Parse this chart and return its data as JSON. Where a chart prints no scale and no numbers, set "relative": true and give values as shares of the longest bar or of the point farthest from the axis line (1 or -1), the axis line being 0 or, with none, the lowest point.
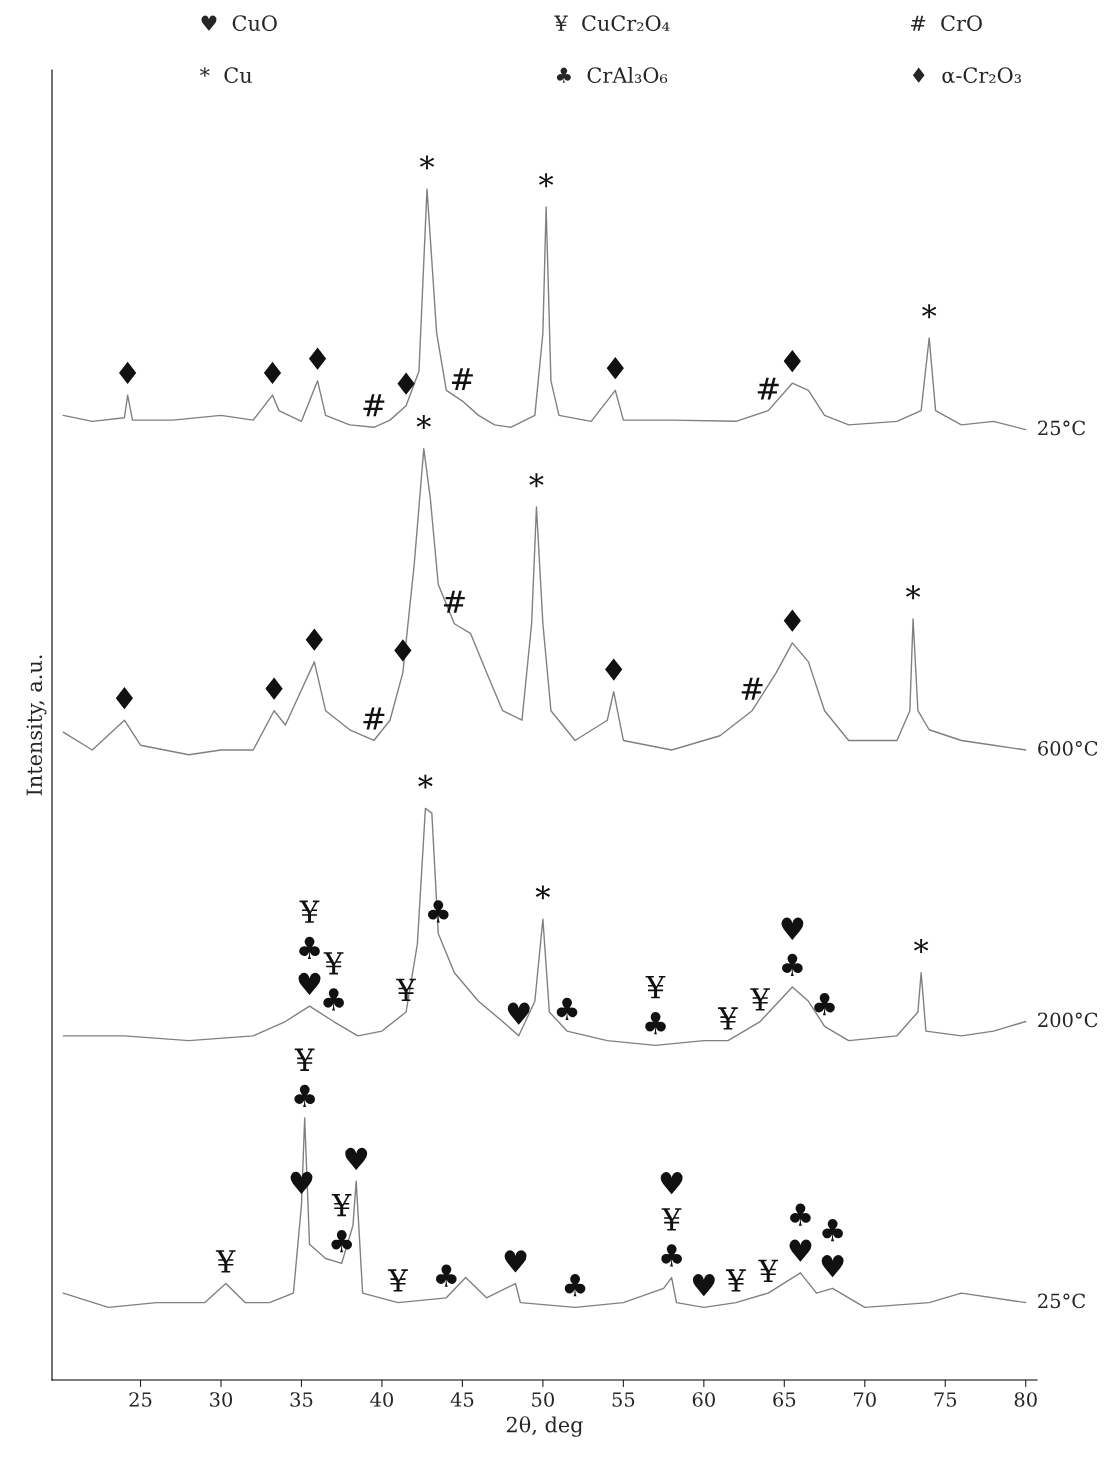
{
  "chart_data": {
    "type": "line",
    "relative": true,
    "xlabel": "2θ, deg",
    "ylabel": "Intensity, a.u.",
    "xlim": [
      19.5,
      80.7
    ],
    "xticks": [
      25,
      30,
      35,
      40,
      45,
      50,
      55,
      60,
      65,
      70,
      75,
      80
    ],
    "grid": false,
    "legend": false,
    "marker": "none",
    "line_style": "solid",
    "series": [
      {
        "name": "25°C",
        "color": "#808080",
        "x": [
          20.2,
          22,
          24,
          24.2,
          24.5,
          27,
          30,
          32,
          33.2,
          33.6,
          35,
          36,
          36.5,
          38,
          39.5,
          40.5,
          41.5,
          42.3,
          42.8,
          43.4,
          44,
          45,
          46,
          47,
          48,
          49.5,
          50,
          50.2,
          50.5,
          51,
          53,
          54.5,
          55,
          58,
          62,
          64,
          65.5,
          66.5,
          67.5,
          69,
          72,
          73.5,
          74,
          74.4,
          76,
          78,
          80
        ],
        "values": [
          0.81,
          0.805,
          0.808,
          0.827,
          0.806,
          0.806,
          0.81,
          0.806,
          0.827,
          0.814,
          0.805,
          0.839,
          0.81,
          0.802,
          0.8,
          0.806,
          0.818,
          0.847,
          1.0,
          0.879,
          0.831,
          0.822,
          0.81,
          0.802,
          0.8,
          0.81,
          0.879,
          0.985,
          0.839,
          0.81,
          0.805,
          0.831,
          0.806,
          0.806,
          0.805,
          0.814,
          0.837,
          0.831,
          0.81,
          0.802,
          0.805,
          0.814,
          0.875,
          0.814,
          0.802,
          0.805,
          0.798
        ]
      },
      {
        "name": "600°C",
        "color": "#808080",
        "x": [
          20.2,
          22,
          24,
          25,
          28,
          30,
          32,
          33.3,
          34,
          35.8,
          36.5,
          38,
          39.5,
          40.5,
          41.3,
          42,
          42.6,
          43,
          43.5,
          44.5,
          45.5,
          46.5,
          47.5,
          48.7,
          49.3,
          49.6,
          50,
          50.5,
          52,
          54,
          54.4,
          55,
          58,
          61,
          63,
          64.5,
          65.5,
          66.5,
          67.5,
          69,
          72,
          72.8,
          73,
          73.3,
          74,
          76,
          78,
          80
        ],
        "values": [
          0.544,
          0.529,
          0.554,
          0.533,
          0.525,
          0.529,
          0.529,
          0.562,
          0.55,
          0.603,
          0.562,
          0.546,
          0.537,
          0.554,
          0.594,
          0.684,
          0.782,
          0.741,
          0.668,
          0.635,
          0.627,
          0.594,
          0.562,
          0.554,
          0.635,
          0.733,
          0.635,
          0.562,
          0.537,
          0.554,
          0.578,
          0.537,
          0.529,
          0.541,
          0.562,
          0.594,
          0.619,
          0.603,
          0.562,
          0.537,
          0.537,
          0.562,
          0.639,
          0.562,
          0.546,
          0.537,
          0.533,
          0.529
        ]
      },
      {
        "name": "200°C",
        "color": "#808080",
        "x": [
          20.2,
          24,
          28,
          32,
          34,
          35.5,
          37,
          38.5,
          40,
          41.5,
          42.2,
          42.7,
          43.1,
          43.5,
          44.5,
          46,
          47.5,
          48.5,
          49.5,
          50,
          50.4,
          51.5,
          54,
          57,
          60,
          61.5,
          63.5,
          65.5,
          66.5,
          67.5,
          69,
          72,
          73.3,
          73.5,
          73.8,
          76,
          78,
          80
        ],
        "values": [
          0.289,
          0.289,
          0.285,
          0.289,
          0.301,
          0.314,
          0.301,
          0.289,
          0.293,
          0.309,
          0.366,
          0.48,
          0.476,
          0.375,
          0.342,
          0.318,
          0.301,
          0.289,
          0.318,
          0.387,
          0.309,
          0.293,
          0.285,
          0.281,
          0.285,
          0.285,
          0.301,
          0.33,
          0.318,
          0.297,
          0.285,
          0.289,
          0.309,
          0.342,
          0.293,
          0.289,
          0.293,
          0.301
        ]
      },
      {
        "name": "25°C",
        "color": "#808080",
        "x": [
          20.2,
          23,
          26,
          29,
          30.3,
          31.5,
          33,
          34.5,
          35,
          35.2,
          35.5,
          36.5,
          37.5,
          38.2,
          38.4,
          38.8,
          41,
          44,
          45.2,
          46.5,
          48.3,
          48.6,
          52,
          55,
          57.5,
          58,
          58.3,
          60,
          62,
          64,
          66,
          67,
          68,
          70,
          74,
          76,
          80
        ],
        "values": [
          0.073,
          0.061,
          0.065,
          0.065,
          0.081,
          0.065,
          0.065,
          0.073,
          0.147,
          0.22,
          0.114,
          0.102,
          0.098,
          0.13,
          0.167,
          0.073,
          0.065,
          0.069,
          0.086,
          0.069,
          0.081,
          0.065,
          0.061,
          0.065,
          0.077,
          0.086,
          0.065,
          0.061,
          0.065,
          0.073,
          0.09,
          0.073,
          0.077,
          0.061,
          0.065,
          0.073,
          0.065
        ]
      }
    ],
    "annotations": [
      "♥  CuO",
      "¥  CuCr₂O₄",
      "#  CrO",
      "*  Cu",
      "♣  CrAl₃O₆",
      "♦  α-Cr₂O₃",
      {
        "text": "♦",
        "x": 24.2,
        "y": 0.827
      },
      {
        "text": "♦",
        "x": 33.2,
        "y": 0.827
      },
      {
        "text": "♦",
        "x": 36,
        "y": 0.839
      },
      {
        "text": "#",
        "x": 39.5,
        "y": 0.8
      },
      {
        "text": "♦",
        "x": 41.5,
        "y": 0.818
      },
      {
        "text": "*",
        "x": 42.8,
        "y": 1.0
      },
      {
        "text": "#",
        "x": 45,
        "y": 0.822
      },
      {
        "text": "*",
        "x": 50.2,
        "y": 0.985
      },
      {
        "text": "♦",
        "x": 54.5,
        "y": 0.831
      },
      {
        "text": "#",
        "x": 64,
        "y": 0.814
      },
      {
        "text": "♦",
        "x": 65.5,
        "y": 0.837
      },
      {
        "text": "*",
        "x": 74,
        "y": 0.875
      },
      {
        "text": "♦",
        "x": 24,
        "y": 0.554
      },
      {
        "text": "♦",
        "x": 33.3,
        "y": 0.562
      },
      {
        "text": "♦",
        "x": 35.8,
        "y": 0.603
      },
      {
        "text": "#",
        "x": 39.5,
        "y": 0.537
      },
      {
        "text": "♦",
        "x": 41.3,
        "y": 0.594
      },
      {
        "text": "*",
        "x": 42.6,
        "y": 0.782
      },
      {
        "text": "#",
        "x": 44.5,
        "y": 0.635
      },
      {
        "text": "*",
        "x": 49.6,
        "y": 0.733
      },
      {
        "text": "♦",
        "x": 54.4,
        "y": 0.578
      },
      {
        "text": "#",
        "x": 63,
        "y": 0.562
      },
      {
        "text": "♦",
        "x": 65.5,
        "y": 0.619
      },
      {
        "text": "*",
        "x": 73,
        "y": 0.639
      },
      {
        "text": "♥",
        "x": 35.5,
        "y": 0.314
      },
      {
        "text": "♣",
        "x": 35.5,
        "y": 0.314
      },
      {
        "text": "¥",
        "x": 35.5,
        "y": 0.314
      },
      {
        "text": "♣",
        "x": 37,
        "y": 0.301
      },
      {
        "text": "¥",
        "x": 37,
        "y": 0.301
      },
      {
        "text": "¥",
        "x": 41.5,
        "y": 0.309
      },
      {
        "text": "*",
        "x": 42.7,
        "y": 0.48
      },
      {
        "text": "♣",
        "x": 43.5,
        "y": 0.375
      },
      {
        "text": "♥",
        "x": 48.5,
        "y": 0.289
      },
      {
        "text": "*",
        "x": 50,
        "y": 0.387
      },
      {
        "text": "♣",
        "x": 51.5,
        "y": 0.293
      },
      {
        "text": "♣",
        "x": 57,
        "y": 0.281
      },
      {
        "text": "¥",
        "x": 57,
        "y": 0.281
      },
      {
        "text": "¥",
        "x": 61.5,
        "y": 0.285
      },
      {
        "text": "¥",
        "x": 63.5,
        "y": 0.301
      },
      {
        "text": "♣",
        "x": 65.5,
        "y": 0.33
      },
      {
        "text": "♥",
        "x": 65.5,
        "y": 0.33
      },
      {
        "text": "♣",
        "x": 67.5,
        "y": 0.297
      },
      {
        "text": "*",
        "x": 73.5,
        "y": 0.342
      },
      {
        "text": "♥",
        "x": 35,
        "y": 0.147
      },
      {
        "text": "♣",
        "x": 35.2,
        "y": 0.22
      },
      {
        "text": "¥",
        "x": 35.2,
        "y": 0.22
      },
      {
        "text": "♣",
        "x": 37.5,
        "y": 0.098
      },
      {
        "text": "¥",
        "x": 37.5,
        "y": 0.098
      },
      {
        "text": "♥",
        "x": 38.4,
        "y": 0.167
      },
      {
        "text": "¥",
        "x": 30.3,
        "y": 0.081
      },
      {
        "text": "¥",
        "x": 41,
        "y": 0.065
      },
      {
        "text": "♣",
        "x": 44,
        "y": 0.069
      },
      {
        "text": "♥",
        "x": 48.3,
        "y": 0.081
      },
      {
        "text": "♣",
        "x": 52,
        "y": 0.061
      },
      {
        "text": "♣",
        "x": 58,
        "y": 0.086
      },
      {
        "text": "¥",
        "x": 58,
        "y": 0.086
      },
      {
        "text": "♥",
        "x": 58,
        "y": 0.086
      },
      {
        "text": "♥",
        "x": 60,
        "y": 0.061
      },
      {
        "text": "¥",
        "x": 62,
        "y": 0.065
      },
      {
        "text": "¥",
        "x": 64,
        "y": 0.073
      },
      {
        "text": "♥",
        "x": 66,
        "y": 0.09
      },
      {
        "text": "♣",
        "x": 66,
        "y": 0.09
      },
      {
        "text": "♥",
        "x": 68,
        "y": 0.077
      },
      {
        "text": "♣",
        "x": 68,
        "y": 0.077
      }
    ]
  }
}
